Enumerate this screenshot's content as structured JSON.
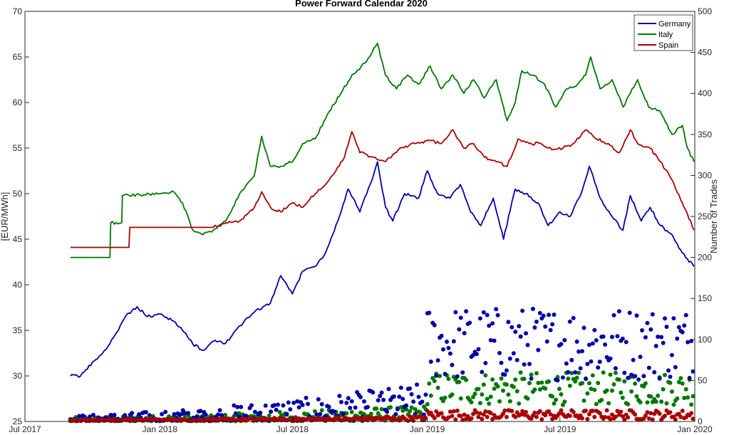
{
  "chart_data": {
    "type": "line",
    "title": "Power Forward Calendar 2020",
    "ylabel_left": "[EUR/MWh]",
    "ylabel_right": "Number of Trades",
    "ylim_left": [
      25,
      70
    ],
    "ylim_right": [
      0,
      500
    ],
    "yticks_left": [
      "25",
      "30",
      "35",
      "40",
      "45",
      "50",
      "55",
      "60",
      "65",
      "70"
    ],
    "yticks_right": [
      "0",
      "50",
      "100",
      "150",
      "200",
      "250",
      "300",
      "350",
      "400",
      "450",
      "500"
    ],
    "xticks": [
      "Jul 2017",
      "Jan 2018",
      "Jul 2018",
      "Jan 2019",
      "Jul 2019",
      "Jan 2020"
    ],
    "legend_position": "top-right",
    "grid": false,
    "series": [
      {
        "name": "Germany",
        "color": "#0000aa",
        "axis": "left",
        "points": [
          [
            "2017-09-01",
            30.0
          ],
          [
            "2017-09-15",
            30.0
          ],
          [
            "2017-10-01",
            31.5
          ],
          [
            "2017-10-15",
            32.5
          ],
          [
            "2017-11-01",
            34.5
          ],
          [
            "2017-11-15",
            36.5
          ],
          [
            "2017-12-01",
            37.6
          ],
          [
            "2017-12-15",
            36.5
          ],
          [
            "2018-01-01",
            36.8
          ],
          [
            "2018-01-20",
            36.0
          ],
          [
            "2018-02-01",
            35.0
          ],
          [
            "2018-02-15",
            33.5
          ],
          [
            "2018-03-01",
            32.8
          ],
          [
            "2018-03-15",
            33.8
          ],
          [
            "2018-04-01",
            33.6
          ],
          [
            "2018-04-20",
            35.5
          ],
          [
            "2018-05-10",
            37.0
          ],
          [
            "2018-06-01",
            38.0
          ],
          [
            "2018-06-15",
            41.0
          ],
          [
            "2018-07-01",
            39.0
          ],
          [
            "2018-07-15",
            41.5
          ],
          [
            "2018-08-01",
            42.0
          ],
          [
            "2018-08-15",
            43.5
          ],
          [
            "2018-09-01",
            47.0
          ],
          [
            "2018-09-15",
            50.5
          ],
          [
            "2018-10-01",
            48.0
          ],
          [
            "2018-10-15",
            51.0
          ],
          [
            "2018-10-25",
            53.5
          ],
          [
            "2018-11-05",
            48.5
          ],
          [
            "2018-11-15",
            47.0
          ],
          [
            "2018-12-01",
            50.0
          ],
          [
            "2018-12-20",
            49.5
          ],
          [
            "2019-01-01",
            52.5
          ],
          [
            "2019-01-15",
            50.0
          ],
          [
            "2019-02-01",
            49.5
          ],
          [
            "2019-02-15",
            51.0
          ],
          [
            "2019-03-01",
            48.0
          ],
          [
            "2019-03-15",
            46.5
          ],
          [
            "2019-04-01",
            49.5
          ],
          [
            "2019-04-15",
            45.0
          ],
          [
            "2019-05-01",
            50.5
          ],
          [
            "2019-05-15",
            50.0
          ],
          [
            "2019-06-01",
            49.0
          ],
          [
            "2019-06-15",
            46.5
          ],
          [
            "2019-07-01",
            48.0
          ],
          [
            "2019-07-15",
            47.5
          ],
          [
            "2019-08-01",
            50.5
          ],
          [
            "2019-08-10",
            53.0
          ],
          [
            "2019-08-25",
            49.5
          ],
          [
            "2019-09-10",
            47.5
          ],
          [
            "2019-09-25",
            46.0
          ],
          [
            "2019-10-05",
            49.8
          ],
          [
            "2019-10-20",
            47.0
          ],
          [
            "2019-11-01",
            48.5
          ],
          [
            "2019-11-15",
            46.5
          ],
          [
            "2019-12-01",
            45.5
          ],
          [
            "2019-12-15",
            43.5
          ],
          [
            "2019-12-31",
            42.0
          ]
        ]
      },
      {
        "name": "Italy",
        "color": "#007700",
        "axis": "left",
        "points": [
          [
            "2017-09-01",
            43.0
          ],
          [
            "2017-10-25",
            43.0
          ],
          [
            "2017-10-26",
            46.8
          ],
          [
            "2017-11-10",
            46.8
          ],
          [
            "2017-11-11",
            49.8
          ],
          [
            "2018-01-01",
            50.0
          ],
          [
            "2018-01-20",
            50.2
          ],
          [
            "2018-02-01",
            49.0
          ],
          [
            "2018-02-15",
            46.0
          ],
          [
            "2018-03-01",
            45.5
          ],
          [
            "2018-03-15",
            46.0
          ],
          [
            "2018-04-01",
            47.0
          ],
          [
            "2018-04-20",
            50.0
          ],
          [
            "2018-05-10",
            52.0
          ],
          [
            "2018-05-20",
            56.3
          ],
          [
            "2018-06-01",
            53.0
          ],
          [
            "2018-06-15",
            53.0
          ],
          [
            "2018-07-01",
            53.5
          ],
          [
            "2018-07-15",
            55.5
          ],
          [
            "2018-08-01",
            56.0
          ],
          [
            "2018-08-20",
            59.0
          ],
          [
            "2018-09-05",
            61.0
          ],
          [
            "2018-09-20",
            63.0
          ],
          [
            "2018-10-10",
            64.5
          ],
          [
            "2018-10-25",
            66.5
          ],
          [
            "2018-11-05",
            63.0
          ],
          [
            "2018-11-20",
            61.5
          ],
          [
            "2018-12-05",
            63.0
          ],
          [
            "2018-12-20",
            62.0
          ],
          [
            "2019-01-05",
            64.0
          ],
          [
            "2019-01-20",
            61.5
          ],
          [
            "2019-02-05",
            63.0
          ],
          [
            "2019-02-20",
            61.0
          ],
          [
            "2019-03-05",
            62.5
          ],
          [
            "2019-03-20",
            60.5
          ],
          [
            "2019-04-05",
            62.5
          ],
          [
            "2019-04-20",
            58.0
          ],
          [
            "2019-05-01",
            60.0
          ],
          [
            "2019-05-10",
            63.5
          ],
          [
            "2019-05-25",
            63.0
          ],
          [
            "2019-06-10",
            62.0
          ],
          [
            "2019-06-25",
            59.5
          ],
          [
            "2019-07-10",
            61.5
          ],
          [
            "2019-07-25",
            62.0
          ],
          [
            "2019-08-05",
            63.0
          ],
          [
            "2019-08-12",
            65.0
          ],
          [
            "2019-08-25",
            61.5
          ],
          [
            "2019-09-10",
            62.5
          ],
          [
            "2019-09-25",
            59.5
          ],
          [
            "2019-10-05",
            61.0
          ],
          [
            "2019-10-15",
            62.5
          ],
          [
            "2019-10-30",
            59.5
          ],
          [
            "2019-11-15",
            59.0
          ],
          [
            "2019-12-01",
            56.5
          ],
          [
            "2019-12-15",
            57.5
          ],
          [
            "2019-12-22",
            55.0
          ],
          [
            "2019-12-31",
            53.5
          ]
        ]
      },
      {
        "name": "Spain",
        "color": "#aa0000",
        "axis": "left",
        "points": [
          [
            "2017-09-01",
            44.1
          ],
          [
            "2017-11-20",
            44.1
          ],
          [
            "2017-11-21",
            46.3
          ],
          [
            "2018-03-15",
            46.3
          ],
          [
            "2018-04-01",
            46.8
          ],
          [
            "2018-04-20",
            47.0
          ],
          [
            "2018-05-10",
            48.5
          ],
          [
            "2018-05-20",
            50.2
          ],
          [
            "2018-06-01",
            48.5
          ],
          [
            "2018-06-15",
            48.0
          ],
          [
            "2018-07-01",
            49.0
          ],
          [
            "2018-07-15",
            48.5
          ],
          [
            "2018-08-01",
            50.0
          ],
          [
            "2018-08-20",
            51.5
          ],
          [
            "2018-09-10",
            54.0
          ],
          [
            "2018-09-20",
            56.8
          ],
          [
            "2018-10-01",
            54.5
          ],
          [
            "2018-10-20",
            54.0
          ],
          [
            "2018-11-05",
            53.5
          ],
          [
            "2018-11-25",
            55.0
          ],
          [
            "2018-12-15",
            55.5
          ],
          [
            "2019-01-05",
            55.8
          ],
          [
            "2019-01-20",
            55.5
          ],
          [
            "2019-02-05",
            57.0
          ],
          [
            "2019-02-20",
            55.0
          ],
          [
            "2019-03-05",
            55.5
          ],
          [
            "2019-03-20",
            54.0
          ],
          [
            "2019-04-05",
            53.5
          ],
          [
            "2019-04-20",
            53.0
          ],
          [
            "2019-05-05",
            56.0
          ],
          [
            "2019-05-20",
            55.5
          ],
          [
            "2019-06-05",
            55.5
          ],
          [
            "2019-06-20",
            54.8
          ],
          [
            "2019-07-05",
            55.0
          ],
          [
            "2019-07-20",
            55.5
          ],
          [
            "2019-08-05",
            57.0
          ],
          [
            "2019-08-20",
            56.0
          ],
          [
            "2019-09-05",
            55.5
          ],
          [
            "2019-09-20",
            54.5
          ],
          [
            "2019-10-05",
            57.0
          ],
          [
            "2019-10-15",
            55.5
          ],
          [
            "2019-11-01",
            55.0
          ],
          [
            "2019-11-15",
            53.5
          ],
          [
            "2019-12-01",
            51.5
          ],
          [
            "2019-12-15",
            49.0
          ],
          [
            "2019-12-31",
            46.0
          ]
        ]
      }
    ],
    "trades_series": [
      {
        "name": "Germany",
        "color": "#0000aa",
        "axis": "right",
        "level_start": 3,
        "level_mid": 25,
        "level_end": 95,
        "spread_start": 4,
        "spread_end": 45
      },
      {
        "name": "Italy",
        "color": "#007700",
        "axis": "right",
        "level_start": 2,
        "level_mid": 10,
        "level_end": 40,
        "spread_start": 3,
        "spread_end": 20
      },
      {
        "name": "Spain",
        "color": "#aa0000",
        "axis": "right",
        "level_start": 1,
        "level_mid": 4,
        "level_end": 8,
        "spread_start": 2,
        "spread_end": 6
      }
    ]
  }
}
